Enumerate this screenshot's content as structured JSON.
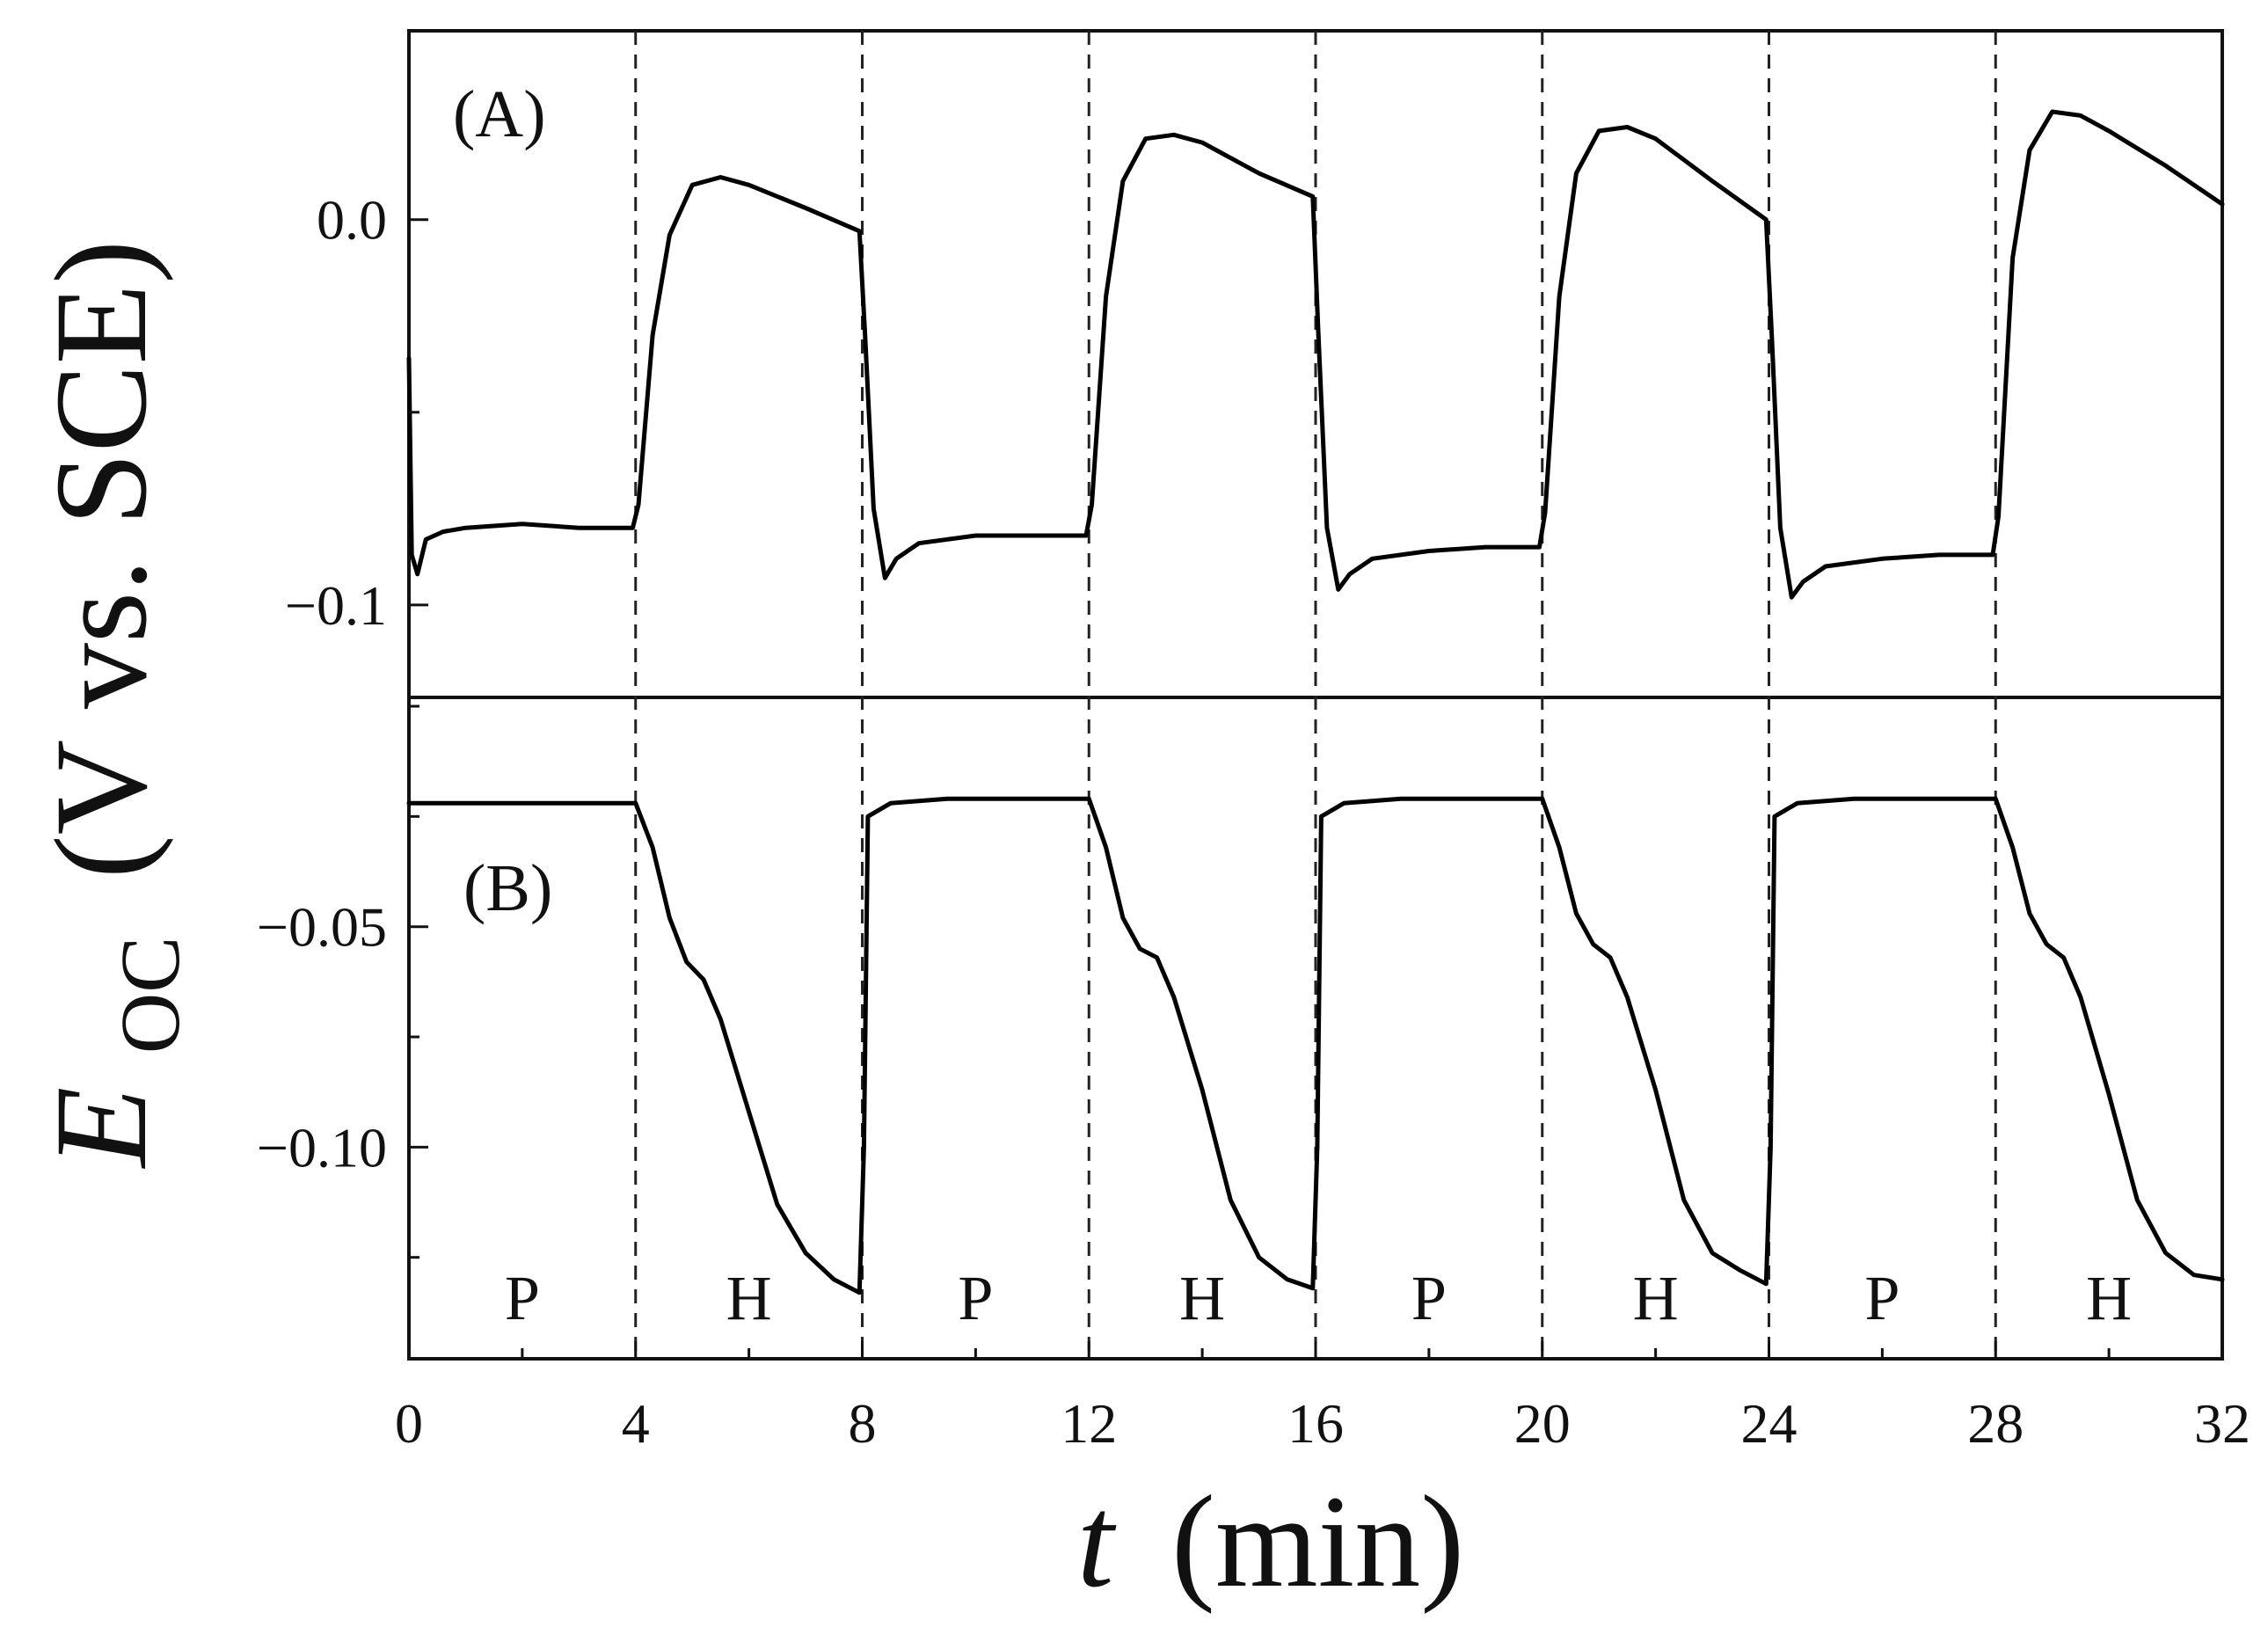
{
  "chart_data": {
    "type": "line",
    "xlabel": {
      "var": "t",
      "unit": "(min)"
    },
    "ylabel": {
      "var": "E",
      "sub": "OC",
      "unit": "(V vs. SCE)"
    },
    "x_ticks": [
      "0",
      "4",
      "8",
      "12",
      "16",
      "20",
      "24",
      "28",
      "32"
    ],
    "xlim": [
      0,
      32
    ],
    "phase_boundaries": [
      4,
      8,
      12,
      16,
      20,
      24,
      28
    ],
    "phases": [
      {
        "label": "P",
        "x": 2
      },
      {
        "label": "H",
        "x": 6
      },
      {
        "label": "P",
        "x": 10
      },
      {
        "label": "H",
        "x": 14
      },
      {
        "label": "P",
        "x": 18
      },
      {
        "label": "H",
        "x": 22
      },
      {
        "label": "P",
        "x": 26
      },
      {
        "label": "H",
        "x": 30
      }
    ],
    "panels": [
      {
        "label": "(A)",
        "ylim": [
          -0.124,
          0.049
        ],
        "y_ticks": [
          {
            "value": 0.0,
            "label": "0.0"
          },
          {
            "value": -0.1,
            "label": "−0.1"
          }
        ],
        "series": [
          {
            "x": [
              0,
              0.05,
              0.15,
              0.3,
              0.6,
              1.0,
              2.0,
              3.0,
              3.95,
              4.05,
              4.3,
              4.6,
              5.0,
              5.5,
              6.0,
              7.0,
              7.95,
              8.05,
              8.2,
              8.4,
              8.6,
              9.0,
              10.0,
              11.0,
              11.95,
              12.05,
              12.3,
              12.6,
              13.0,
              13.5,
              14.0,
              15.0,
              15.95,
              16.05,
              16.2,
              16.4,
              16.6,
              17.0,
              18.0,
              19.0,
              19.95,
              20.05,
              20.3,
              20.6,
              21.0,
              21.5,
              22.0,
              23.0,
              23.95,
              24.05,
              24.2,
              24.4,
              24.6,
              25.0,
              26.0,
              27.0,
              27.95,
              28.05,
              28.3,
              28.6,
              29.0,
              29.5,
              30.0,
              31.0,
              32.0
            ],
            "y": [
              -0.036,
              -0.087,
              -0.092,
              -0.083,
              -0.081,
              -0.08,
              -0.079,
              -0.08,
              -0.08,
              -0.074,
              -0.03,
              -0.004,
              0.009,
              0.011,
              0.009,
              0.003,
              -0.003,
              -0.03,
              -0.075,
              -0.093,
              -0.088,
              -0.084,
              -0.082,
              -0.082,
              -0.082,
              -0.074,
              -0.02,
              0.01,
              0.021,
              0.022,
              0.02,
              0.012,
              0.006,
              -0.03,
              -0.08,
              -0.096,
              -0.092,
              -0.088,
              -0.086,
              -0.085,
              -0.085,
              -0.076,
              -0.02,
              0.012,
              0.023,
              0.024,
              0.021,
              0.01,
              0.0,
              -0.03,
              -0.08,
              -0.098,
              -0.094,
              -0.09,
              -0.088,
              -0.087,
              -0.087,
              -0.077,
              -0.01,
              0.018,
              0.028,
              0.027,
              0.023,
              0.014,
              0.004
            ]
          }
        ]
      },
      {
        "label": "(B)",
        "ylim": [
          -0.148,
          0.002
        ],
        "y_ticks": [
          {
            "value": -0.05,
            "label": "−0.05"
          },
          {
            "value": -0.1,
            "label": "−0.10"
          }
        ],
        "series": [
          {
            "x": [
              0,
              1,
              2,
              3,
              4,
              4.3,
              4.6,
              4.9,
              5.2,
              5.5,
              6.0,
              6.5,
              7.0,
              7.5,
              7.95,
              8.03,
              8.1,
              8.5,
              9.5,
              11,
              12,
              12.3,
              12.6,
              12.9,
              13.2,
              13.5,
              14.0,
              14.5,
              15.0,
              15.5,
              15.95,
              16.03,
              16.1,
              16.5,
              17.5,
              19,
              20,
              20.3,
              20.6,
              20.9,
              21.2,
              21.5,
              22.0,
              22.5,
              23.0,
              23.5,
              23.95,
              24.03,
              24.1,
              24.5,
              25.5,
              27,
              28,
              28.3,
              28.6,
              28.9,
              29.2,
              29.5,
              30.0,
              30.5,
              31.0,
              31.5,
              32.0
            ],
            "y": [
              -0.022,
              -0.022,
              -0.022,
              -0.022,
              -0.022,
              -0.032,
              -0.048,
              -0.058,
              -0.062,
              -0.071,
              -0.092,
              -0.113,
              -0.124,
              -0.13,
              -0.133,
              -0.1,
              -0.025,
              -0.022,
              -0.021,
              -0.021,
              -0.021,
              -0.032,
              -0.048,
              -0.055,
              -0.057,
              -0.066,
              -0.087,
              -0.112,
              -0.125,
              -0.13,
              -0.132,
              -0.1,
              -0.025,
              -0.022,
              -0.021,
              -0.021,
              -0.021,
              -0.032,
              -0.047,
              -0.054,
              -0.057,
              -0.066,
              -0.087,
              -0.112,
              -0.124,
              -0.128,
              -0.131,
              -0.1,
              -0.025,
              -0.022,
              -0.021,
              -0.021,
              -0.021,
              -0.032,
              -0.047,
              -0.054,
              -0.057,
              -0.066,
              -0.088,
              -0.112,
              -0.124,
              -0.129,
              -0.13
            ]
          }
        ]
      }
    ]
  }
}
